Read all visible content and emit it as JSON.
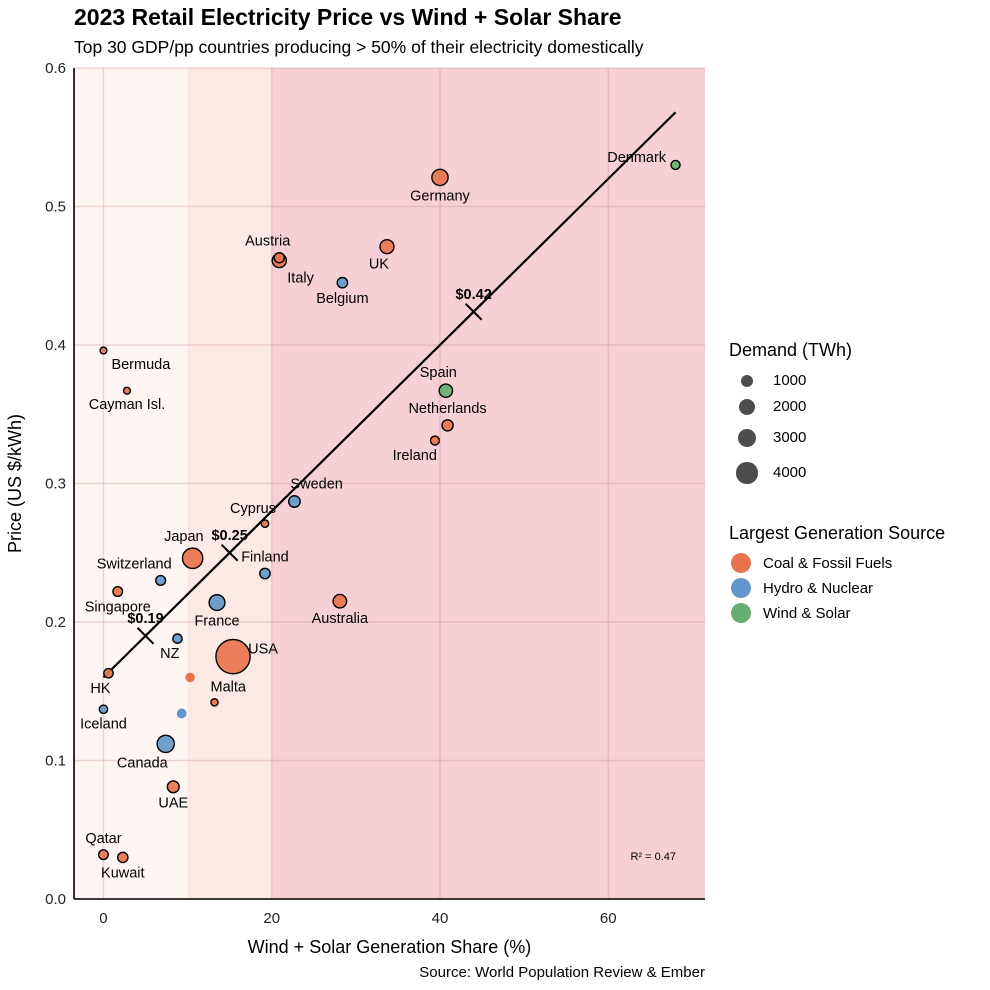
{
  "title": "2023 Retail Electricity Price vs Wind + Solar Share",
  "subtitle": "Top 30 GDP/pp countries producing > 50% of their electricity domestically",
  "source": "Source: World Population Review & Ember",
  "colors": {
    "coal": "#E8744F",
    "hydro": "#6497C9",
    "wind": "#67AD72",
    "band_low": "#FDF6F2",
    "band_mid": "#FCE9E3",
    "band_high": "#F6D0D5",
    "demand_legend": "#4D4D4D"
  },
  "legend": {
    "demand_title": "Demand (TWh)",
    "demand_items": [
      {
        "label": "1000",
        "value": 1000
      },
      {
        "label": "2000",
        "value": 2000
      },
      {
        "label": "3000",
        "value": 3000
      },
      {
        "label": "4000",
        "value": 4000
      }
    ],
    "source_title": "Largest Generation Source",
    "source_items": [
      {
        "label": "Coal & Fossil Fuels",
        "key": "coal"
      },
      {
        "label": "Hydro & Nuclear",
        "key": "hydro"
      },
      {
        "label": "Wind & Solar",
        "key": "wind"
      }
    ]
  },
  "chart_data": {
    "type": "scatter",
    "title": "2023 Retail Electricity Price vs Wind + Solar Share",
    "subtitle": "Top 30 GDP/pp countries producing > 50% of their electricity domestically",
    "xlabel": "Wind + Solar Generation Share (%)",
    "ylabel": "Price (US $/kWh)",
    "xlim": [
      -3.5,
      71.5
    ],
    "ylim": [
      0,
      0.6
    ],
    "xticks": [
      0,
      20,
      40,
      60
    ],
    "xtick_labels": [
      "0",
      "20",
      "40",
      "60"
    ],
    "yticks": [
      0.0,
      0.1,
      0.2,
      0.3,
      0.4,
      0.5,
      0.6
    ],
    "ytick_labels": [
      "0.0",
      "0.1",
      "0.2",
      "0.3",
      "0.4",
      "0.5",
      "0.6"
    ],
    "grid": true,
    "background_bands": [
      {
        "from": -3.5,
        "to": 10,
        "key": "band_low"
      },
      {
        "from": 10,
        "to": 20,
        "key": "band_mid"
      },
      {
        "from": 20,
        "to": 71.5,
        "key": "band_high"
      }
    ],
    "legend_position": "right",
    "points": [
      {
        "label": "Denmark",
        "x": 68.0,
        "y": 0.53,
        "demand": 35,
        "source": "wind",
        "label_pos": "left"
      },
      {
        "label": "Germany",
        "x": 40.0,
        "y": 0.521,
        "demand": 500,
        "source": "coal",
        "label_pos": "below"
      },
      {
        "label": "UK",
        "x": 33.7,
        "y": 0.471,
        "demand": 300,
        "source": "coal",
        "label_pos": "below-left"
      },
      {
        "label": "Italy",
        "x": 20.9,
        "y": 0.461,
        "demand": 310,
        "source": "coal",
        "label_pos": "below-right"
      },
      {
        "label": "Austria",
        "x": 20.9,
        "y": 0.463,
        "demand": 70,
        "source": "coal",
        "label_pos": "above-left"
      },
      {
        "label": "Belgium",
        "x": 28.4,
        "y": 0.445,
        "demand": 80,
        "source": "hydro",
        "label_pos": "below"
      },
      {
        "label": "Bermuda",
        "x": 0.0,
        "y": 0.396,
        "demand": 1,
        "source": "coal",
        "label_pos": "below-right"
      },
      {
        "label": "Cayman Isl.",
        "x": 2.8,
        "y": 0.367,
        "demand": 1,
        "source": "coal",
        "label_pos": "below"
      },
      {
        "label": "Spain",
        "x": 40.7,
        "y": 0.367,
        "demand": 250,
        "source": "wind",
        "label_pos": "above-left"
      },
      {
        "label": "Netherlands",
        "x": 40.9,
        "y": 0.342,
        "demand": 115,
        "source": "coal",
        "label_pos": "above"
      },
      {
        "label": "Ireland",
        "x": 39.4,
        "y": 0.331,
        "demand": 32,
        "source": "coal",
        "label_pos": "below-left"
      },
      {
        "label": "Sweden",
        "x": 22.7,
        "y": 0.287,
        "demand": 135,
        "source": "hydro",
        "label_pos": "above-right"
      },
      {
        "label": "Cyprus",
        "x": 19.2,
        "y": 0.271,
        "demand": 5,
        "source": "coal",
        "label_pos": "above-left"
      },
      {
        "label": "Japan",
        "x": 10.6,
        "y": 0.246,
        "demand": 1000,
        "source": "coal",
        "label_pos": "above-left"
      },
      {
        "label": "Finland",
        "x": 19.2,
        "y": 0.235,
        "demand": 82,
        "source": "hydro",
        "label_pos": "above"
      },
      {
        "label": "Switzerland",
        "x": 6.8,
        "y": 0.23,
        "demand": 60,
        "source": "hydro",
        "label_pos": "above-left"
      },
      {
        "label": "Singapore",
        "x": 1.7,
        "y": 0.222,
        "demand": 55,
        "source": "coal",
        "label_pos": "below"
      },
      {
        "label": "France",
        "x": 13.5,
        "y": 0.214,
        "demand": 450,
        "source": "hydro",
        "label_pos": "below"
      },
      {
        "label": "Australia",
        "x": 28.1,
        "y": 0.215,
        "demand": 260,
        "source": "coal",
        "label_pos": "below"
      },
      {
        "label": "NZ",
        "x": 8.8,
        "y": 0.188,
        "demand": 42,
        "source": "hydro",
        "label_pos": "below-left"
      },
      {
        "label": "USA",
        "x": 15.4,
        "y": 0.175,
        "demand": 4000,
        "source": "coal",
        "label_pos": "right"
      },
      {
        "label": "HK",
        "x": 0.6,
        "y": 0.163,
        "demand": 45,
        "source": "coal",
        "label_pos": "below-left"
      },
      {
        "label": "",
        "x": 10.3,
        "y": 0.16,
        "demand": 50,
        "source": "coal",
        "label_pos": "none",
        "no_outline": true
      },
      {
        "label": "Malta",
        "x": 13.2,
        "y": 0.142,
        "demand": 3,
        "source": "coal",
        "label_pos": "above-right"
      },
      {
        "label": "Iceland",
        "x": 0.0,
        "y": 0.137,
        "demand": 19,
        "source": "hydro",
        "label_pos": "below"
      },
      {
        "label": "",
        "x": 9.3,
        "y": 0.134,
        "demand": 60,
        "source": "hydro",
        "label_pos": "none",
        "no_outline": true
      },
      {
        "label": "Canada",
        "x": 7.4,
        "y": 0.112,
        "demand": 600,
        "source": "hydro",
        "label_pos": "below-left"
      },
      {
        "label": "UAE",
        "x": 8.3,
        "y": 0.081,
        "demand": 150,
        "source": "coal",
        "label_pos": "below"
      },
      {
        "label": "Qatar",
        "x": 0.0,
        "y": 0.032,
        "demand": 55,
        "source": "coal",
        "label_pos": "above"
      },
      {
        "label": "Kuwait",
        "x": 2.3,
        "y": 0.03,
        "demand": 75,
        "source": "coal",
        "label_pos": "below"
      }
    ],
    "trendline": {
      "x0": 0,
      "y0": 0.16,
      "x1": 68,
      "y1": 0.568,
      "r_squared_label": "R² = 0.47"
    },
    "trend_markers": [
      {
        "label": "$0.19",
        "x": 5,
        "y": 0.19
      },
      {
        "label": "$0.25",
        "x": 15,
        "y": 0.25
      },
      {
        "label": "$0.42",
        "x": 44,
        "y": 0.424
      }
    ]
  }
}
